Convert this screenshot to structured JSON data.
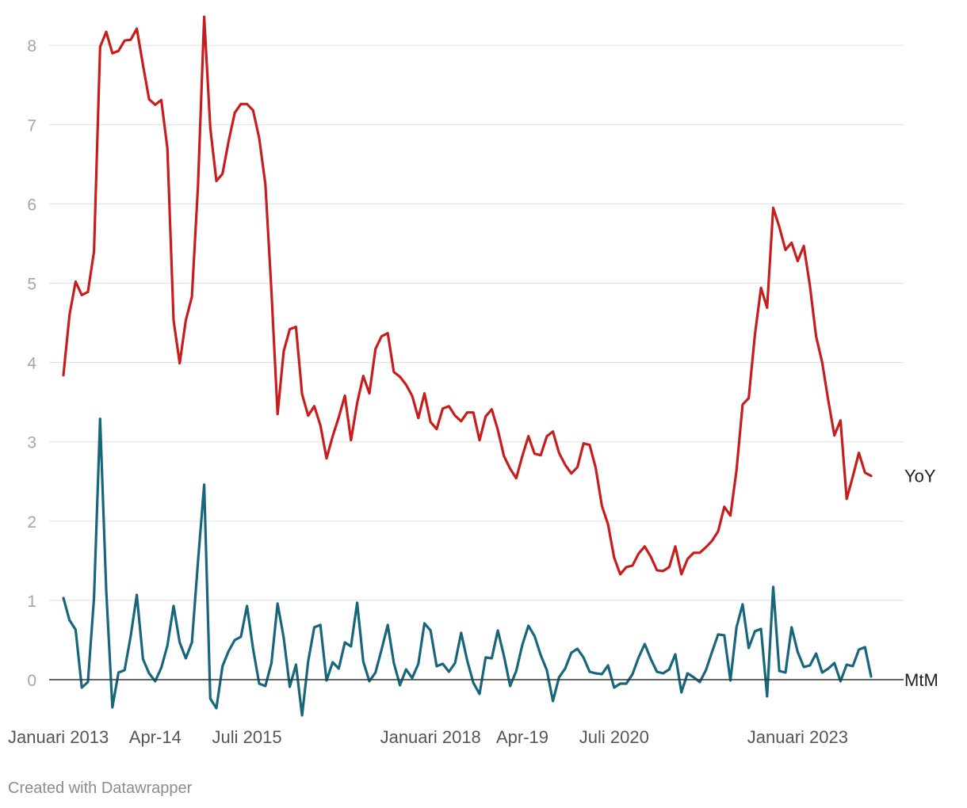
{
  "credit": "Created with Datawrapper",
  "chart_data": {
    "type": "line",
    "start": "2013-01",
    "ylim": [
      0,
      8.5
    ],
    "yticks": [
      0,
      1,
      2,
      3,
      4,
      5,
      6,
      7,
      8
    ],
    "xtick_labels": [
      {
        "date": "2013-01",
        "label": "Januari 2013"
      },
      {
        "date": "2014-04",
        "label": "Apr-14"
      },
      {
        "date": "2015-07",
        "label": "Juli 2015"
      },
      {
        "date": "2018-01",
        "label": "Januari 2018"
      },
      {
        "date": "2019-04",
        "label": "Apr-19"
      },
      {
        "date": "2020-07",
        "label": "Juli 2020"
      },
      {
        "date": "2023-01",
        "label": "Januari 2023"
      }
    ],
    "grid": true,
    "legend": "direct labels at line ends",
    "series": [
      {
        "name": "YoY",
        "color": "#c71e1d",
        "values": [
          3.84,
          4.6,
          5.02,
          4.85,
          4.89,
          5.4,
          7.98,
          8.17,
          7.9,
          7.93,
          8.06,
          8.07,
          8.21,
          7.75,
          7.32,
          7.25,
          7.31,
          6.7,
          4.53,
          3.99,
          4.53,
          4.83,
          6.23,
          8.36,
          6.96,
          6.29,
          6.38,
          6.79,
          7.15,
          7.26,
          7.26,
          7.18,
          6.83,
          6.25,
          4.89,
          3.35,
          4.14,
          4.42,
          4.45,
          3.6,
          3.33,
          3.45,
          3.21,
          2.79,
          3.07,
          3.31,
          3.58,
          3.02,
          3.49,
          3.83,
          3.61,
          4.17,
          4.33,
          4.37,
          3.88,
          3.82,
          3.72,
          3.58,
          3.3,
          3.61,
          3.25,
          3.16,
          3.42,
          3.45,
          3.33,
          3.26,
          3.37,
          3.37,
          3.02,
          3.32,
          3.41,
          3.15,
          2.82,
          2.66,
          2.54,
          2.82,
          3.07,
          2.85,
          2.83,
          3.07,
          3.13,
          2.86,
          2.71,
          2.6,
          2.68,
          2.98,
          2.96,
          2.67,
          2.19,
          1.96,
          1.54,
          1.33,
          1.42,
          1.44,
          1.59,
          1.68,
          1.55,
          1.38,
          1.37,
          1.42,
          1.68,
          1.33,
          1.52,
          1.6,
          1.6,
          1.67,
          1.75,
          1.87,
          2.18,
          2.07,
          2.64,
          3.47,
          3.55,
          4.35,
          4.94,
          4.69,
          5.95,
          5.71,
          5.42,
          5.51,
          5.28,
          5.47,
          4.97,
          4.33,
          4.0,
          3.52,
          3.08,
          3.27,
          2.28,
          2.56,
          2.86,
          2.61,
          2.57
        ]
      },
      {
        "name": "MtM",
        "color": "#18667b",
        "values": [
          1.03,
          0.75,
          0.63,
          -0.1,
          -0.03,
          1.03,
          3.29,
          1.13,
          -0.35,
          0.09,
          0.12,
          0.55,
          1.07,
          0.26,
          0.08,
          -0.02,
          0.15,
          0.43,
          0.93,
          0.47,
          0.27,
          0.47,
          1.49,
          2.46,
          -0.24,
          -0.36,
          0.17,
          0.36,
          0.5,
          0.54,
          0.93,
          0.39,
          -0.05,
          -0.08,
          0.21,
          0.96,
          0.53,
          -0.09,
          0.19,
          -0.45,
          0.23,
          0.66,
          0.69,
          -0.01,
          0.22,
          0.14,
          0.47,
          0.42,
          0.97,
          0.23,
          -0.02,
          0.09,
          0.38,
          0.69,
          0.21,
          -0.07,
          0.13,
          0.02,
          0.2,
          0.71,
          0.62,
          0.17,
          0.2,
          0.1,
          0.21,
          0.59,
          0.24,
          -0.04,
          -0.18,
          0.28,
          0.27,
          0.62,
          0.3,
          -0.08,
          0.11,
          0.44,
          0.68,
          0.55,
          0.31,
          0.12,
          -0.27,
          0.03,
          0.14,
          0.34,
          0.39,
          0.28,
          0.1,
          0.08,
          0.07,
          0.18,
          -0.1,
          -0.05,
          -0.05,
          0.07,
          0.28,
          0.45,
          0.26,
          0.1,
          0.08,
          0.13,
          0.32,
          -0.16,
          0.08,
          0.03,
          -0.03,
          0.12,
          0.35,
          0.57,
          0.56,
          -0.01,
          0.66,
          0.95,
          0.4,
          0.61,
          0.64,
          -0.21,
          1.17,
          0.11,
          0.09,
          0.66,
          0.35,
          0.16,
          0.18,
          0.33,
          0.09,
          0.14,
          0.21,
          -0.02,
          0.19,
          0.17,
          0.38,
          0.41,
          0.04
        ]
      }
    ]
  }
}
